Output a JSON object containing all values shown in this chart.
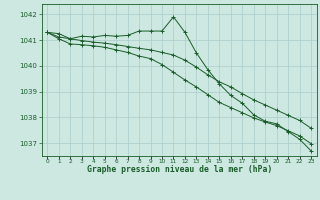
{
  "background_color": "#cce8e0",
  "grid_color": "#aacccc",
  "line_color": "#1a5c2a",
  "xlabel": "Graphe pression niveau de la mer (hPa)",
  "ylim": [
    1036.5,
    1042.4
  ],
  "xlim": [
    -0.5,
    23.5
  ],
  "yticks": [
    1037,
    1038,
    1039,
    1040,
    1041,
    1042
  ],
  "xticks": [
    0,
    1,
    2,
    3,
    4,
    5,
    6,
    7,
    8,
    9,
    10,
    11,
    12,
    13,
    14,
    15,
    16,
    17,
    18,
    19,
    20,
    21,
    22,
    23
  ],
  "series1": [
    1041.3,
    1041.25,
    1041.05,
    1041.15,
    1041.12,
    1041.18,
    1041.15,
    1041.18,
    1041.35,
    1041.35,
    1041.35,
    1041.9,
    1041.3,
    1040.5,
    1039.85,
    1039.3,
    1038.85,
    1038.55,
    1038.1,
    1037.85,
    1037.75,
    1037.45,
    1037.15,
    1036.7
  ],
  "series2": [
    1041.3,
    1041.05,
    1040.85,
    1040.82,
    1040.78,
    1040.72,
    1040.62,
    1040.52,
    1040.38,
    1040.28,
    1040.05,
    1039.75,
    1039.45,
    1039.18,
    1038.88,
    1038.58,
    1038.38,
    1038.18,
    1037.98,
    1037.82,
    1037.68,
    1037.48,
    1037.28,
    1036.98
  ],
  "series3": [
    1041.3,
    1041.12,
    1041.05,
    1040.98,
    1040.92,
    1040.88,
    1040.82,
    1040.75,
    1040.68,
    1040.62,
    1040.52,
    1040.42,
    1040.22,
    1039.95,
    1039.65,
    1039.38,
    1039.18,
    1038.92,
    1038.68,
    1038.48,
    1038.28,
    1038.08,
    1037.88,
    1037.58
  ]
}
